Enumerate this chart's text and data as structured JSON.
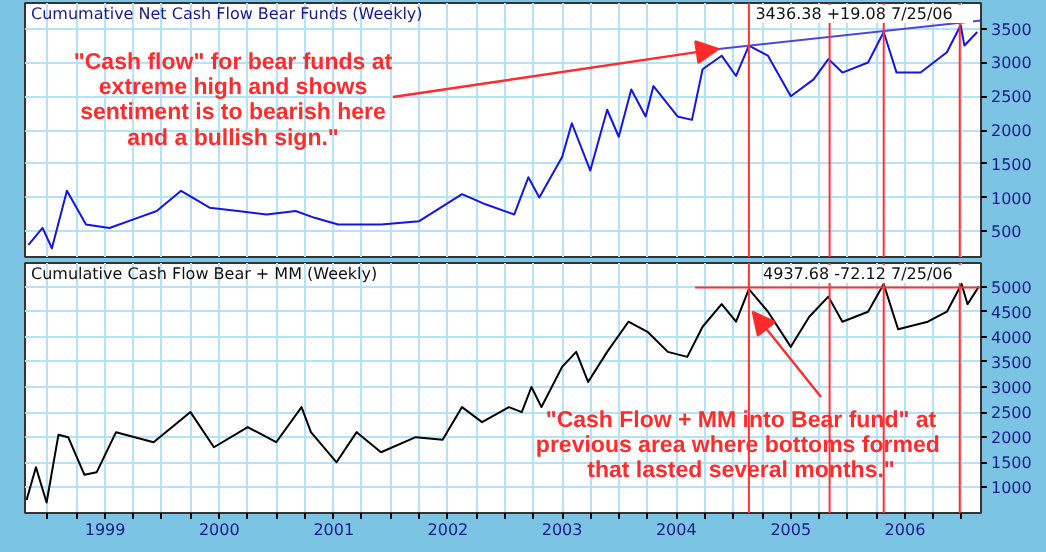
{
  "chart_data": [
    {
      "type": "line",
      "title": "Cumumative Net Cash Flow Bear Funds (Weekly)",
      "xlim": [
        "1998-04-20",
        "2006-09-01"
      ],
      "ylim": [
        120,
        3880
      ],
      "yticks": [
        500,
        1000,
        1500,
        2000,
        2500,
        3000,
        3500
      ],
      "xticks": [
        {
          "value": "1998-07-01",
          "label": null
        },
        {
          "value": "1998-10-01",
          "label": null
        },
        {
          "value": "1999-01-01",
          "label": null
        },
        {
          "value": "1999-04-01",
          "label": null
        },
        {
          "value": "1999-07-01",
          "label": null
        },
        {
          "value": "1999-10-01",
          "label": null
        },
        {
          "value": "2000-01-01",
          "label": null
        },
        {
          "value": "2000-04-01",
          "label": null
        },
        {
          "value": "2000-07-01",
          "label": null
        },
        {
          "value": "2000-10-01",
          "label": null
        },
        {
          "value": "2001-01-01",
          "label": null
        },
        {
          "value": "2001-04-01",
          "label": null
        },
        {
          "value": "2001-07-01",
          "label": null
        },
        {
          "value": "2001-10-01",
          "label": null
        },
        {
          "value": "2002-01-01",
          "label": null
        },
        {
          "value": "2002-04-01",
          "label": null
        },
        {
          "value": "2002-07-01",
          "label": null
        },
        {
          "value": "2002-10-01",
          "label": null
        },
        {
          "value": "2003-01-01",
          "label": null
        },
        {
          "value": "2003-04-01",
          "label": null
        },
        {
          "value": "2003-07-01",
          "label": null
        },
        {
          "value": "2003-10-01",
          "label": null
        },
        {
          "value": "2004-01-01",
          "label": null
        },
        {
          "value": "2004-04-01",
          "label": null
        },
        {
          "value": "2004-07-01",
          "label": null
        },
        {
          "value": "2004-10-01",
          "label": null
        },
        {
          "value": "2005-01-01",
          "label": null
        },
        {
          "value": "2005-04-01",
          "label": null
        },
        {
          "value": "2005-07-01",
          "label": null
        },
        {
          "value": "2005-10-01",
          "label": null
        },
        {
          "value": "2006-01-01",
          "label": null
        },
        {
          "value": "2006-04-01",
          "label": null
        },
        {
          "value": "2006-07-01",
          "label": null
        }
      ],
      "tick_labels": "y",
      "grid": true,
      "series": [
        {
          "color": "#1414e6",
          "x": [
            "1998-05-01",
            "1998-06-15",
            "1998-07-15",
            "1998-09-01",
            "1998-11-01",
            "1999-01-15",
            "1999-04-15",
            "1999-06-15",
            "1999-09-01",
            "1999-12-01",
            "2000-03-01",
            "2000-06-01",
            "2000-09-01",
            "2000-11-01",
            "2001-01-15",
            "2001-06-01",
            "2001-10-01",
            "2002-02-15",
            "2002-05-01",
            "2002-08-01",
            "2002-09-15",
            "2002-10-20",
            "2003-01-01",
            "2003-02-01",
            "2003-04-01",
            "2003-05-25",
            "2003-07-01",
            "2003-08-10",
            "2003-09-25",
            "2003-10-20",
            "2004-01-05",
            "2004-02-20",
            "2004-03-25",
            "2004-05-25",
            "2004-07-10",
            "2004-08-20",
            "2004-10-20",
            "2005-01-01",
            "2005-03-15",
            "2005-05-01",
            "2005-06-15",
            "2005-09-05",
            "2005-10-25",
            "2005-12-05",
            "2006-02-20",
            "2006-05-15",
            "2006-06-28",
            "2006-07-10",
            "2006-08-20"
          ],
          "values": [
            300,
            550,
            250,
            1100,
            600,
            550,
            700,
            800,
            1100,
            850,
            800,
            750,
            800,
            700,
            600,
            600,
            650,
            1050,
            900,
            750,
            1300,
            1000,
            1600,
            2100,
            1400,
            2300,
            1900,
            2600,
            2200,
            2650,
            2200,
            2150,
            2900,
            3100,
            2800,
            3250,
            3100,
            2500,
            2750,
            3050,
            2850,
            3000,
            3450,
            2850,
            2850,
            3150,
            3550,
            3250,
            3450
          ]
        },
        {
          "type": "line",
          "color": "#4848e0",
          "x": [
            "2004-05-15",
            "2006-09-01"
          ],
          "values": [
            3200,
            3620
          ]
        }
      ],
      "ref_lines": [
        {
          "axis": "x",
          "value": "2004-08-20",
          "color": "#ff3030"
        },
        {
          "axis": "x",
          "value": "2005-05-05",
          "color": "#ff3030"
        },
        {
          "axis": "x",
          "value": "2005-10-25",
          "color": "#ff3030"
        },
        {
          "axis": "x",
          "value": "2006-06-25",
          "color": "#ff3030"
        }
      ],
      "annotations": [
        "3436.38   +19.08   7/25/06",
        {
          "text": "\"Cash flow\" for bear funds at\nextreme high and shows\nsentiment is to bearish here\nand a bullish sign.\"",
          "x": "2004-05-15",
          "y": 3200
        }
      ]
    },
    {
      "type": "line",
      "title": "Cumulative Cash Flow Bear + MM (Weekly)",
      "xlim": [
        "1998-04-20",
        "2006-09-01"
      ],
      "ylim": [
        490,
        5470
      ],
      "yticks": [
        1000,
        1500,
        2000,
        2500,
        3000,
        3500,
        4000,
        4500,
        5000
      ],
      "xticks": [
        {
          "value": "1998-07-01",
          "label": null
        },
        {
          "value": "1998-10-01",
          "label": null
        },
        {
          "value": "1999-01-01",
          "label": "1999"
        },
        {
          "value": "1999-04-01",
          "label": null
        },
        {
          "value": "1999-07-01",
          "label": null
        },
        {
          "value": "1999-10-01",
          "label": null
        },
        {
          "value": "2000-01-01",
          "label": "2000"
        },
        {
          "value": "2000-04-01",
          "label": null
        },
        {
          "value": "2000-07-01",
          "label": null
        },
        {
          "value": "2000-10-01",
          "label": null
        },
        {
          "value": "2001-01-01",
          "label": "2001"
        },
        {
          "value": "2001-04-01",
          "label": null
        },
        {
          "value": "2001-07-01",
          "label": null
        },
        {
          "value": "2001-10-01",
          "label": null
        },
        {
          "value": "2002-01-01",
          "label": "2002"
        },
        {
          "value": "2002-04-01",
          "label": null
        },
        {
          "value": "2002-07-01",
          "label": null
        },
        {
          "value": "2002-10-01",
          "label": null
        },
        {
          "value": "2003-01-01",
          "label": "2003"
        },
        {
          "value": "2003-04-01",
          "label": null
        },
        {
          "value": "2003-07-01",
          "label": null
        },
        {
          "value": "2003-10-01",
          "label": null
        },
        {
          "value": "2004-01-01",
          "label": "2004"
        },
        {
          "value": "2004-04-01",
          "label": null
        },
        {
          "value": "2004-07-01",
          "label": null
        },
        {
          "value": "2004-10-01",
          "label": null
        },
        {
          "value": "2005-01-01",
          "label": "2005"
        },
        {
          "value": "2005-04-01",
          "label": null
        },
        {
          "value": "2005-07-01",
          "label": null
        },
        {
          "value": "2005-10-01",
          "label": null
        },
        {
          "value": "2006-01-01",
          "label": "2006"
        },
        {
          "value": "2006-04-01",
          "label": null
        },
        {
          "value": "2006-07-01",
          "label": null
        }
      ],
      "grid": true,
      "series": [
        {
          "color": "#000000",
          "x": [
            "1998-04-25",
            "1998-05-25",
            "1998-06-28",
            "1998-08-05",
            "1998-09-05",
            "1998-10-27",
            "1998-12-05",
            "1999-02-05",
            "1999-06-05",
            "1999-10-01",
            "1999-12-15",
            "2000-04-01",
            "2000-07-01",
            "2000-09-20",
            "2000-10-20",
            "2001-01-10",
            "2001-03-15",
            "2001-06-01",
            "2001-09-20",
            "2001-12-15",
            "2002-02-15",
            "2002-04-20",
            "2002-07-15",
            "2002-08-25",
            "2002-09-25",
            "2002-10-27",
            "2003-01-01",
            "2003-02-15",
            "2003-03-25",
            "2003-05-25",
            "2003-08-01",
            "2003-10-01",
            "2003-12-05",
            "2004-02-05",
            "2004-03-25",
            "2004-05-25",
            "2004-07-10",
            "2004-08-20",
            "2004-10-20",
            "2005-01-01",
            "2005-03-01",
            "2005-05-01",
            "2005-06-15",
            "2005-09-05",
            "2005-10-25",
            "2005-12-10",
            "2006-03-15",
            "2006-05-15",
            "2006-07-01",
            "2006-07-20",
            "2006-08-25"
          ],
          "values": [
            750,
            1400,
            700,
            2050,
            2000,
            1250,
            1300,
            2100,
            1900,
            2500,
            1800,
            2200,
            1900,
            2600,
            2100,
            1500,
            2100,
            1700,
            2000,
            1950,
            2600,
            2300,
            2600,
            2500,
            3000,
            2600,
            3400,
            3700,
            3100,
            3700,
            4300,
            4100,
            3700,
            3600,
            4200,
            4650,
            4300,
            4950,
            4500,
            3800,
            4400,
            4800,
            4300,
            4500,
            5050,
            4150,
            4300,
            4500,
            5050,
            4650,
            5000
          ]
        },
        {
          "type": "line",
          "color": "#ff3030",
          "x": [
            "2004-03-01",
            "2006-09-01"
          ],
          "values": [
            4980,
            4980
          ]
        }
      ],
      "ref_lines": [
        {
          "axis": "x",
          "value": "2004-08-20",
          "color": "#ff3030"
        },
        {
          "axis": "x",
          "value": "2005-05-05",
          "color": "#ff3030"
        },
        {
          "axis": "x",
          "value": "2005-10-25",
          "color": "#ff3030"
        },
        {
          "axis": "x",
          "value": "2006-06-25",
          "color": "#ff3030"
        }
      ],
      "annotations": [
        "4937.68   -72.12   7/25/06",
        {
          "text": "\"Cash Flow + MM into Bear fund\" at\nprevious area where bottoms  formed\nthat lasted several months.\"",
          "x": "2004-09-01",
          "y": 4500
        }
      ]
    }
  ]
}
